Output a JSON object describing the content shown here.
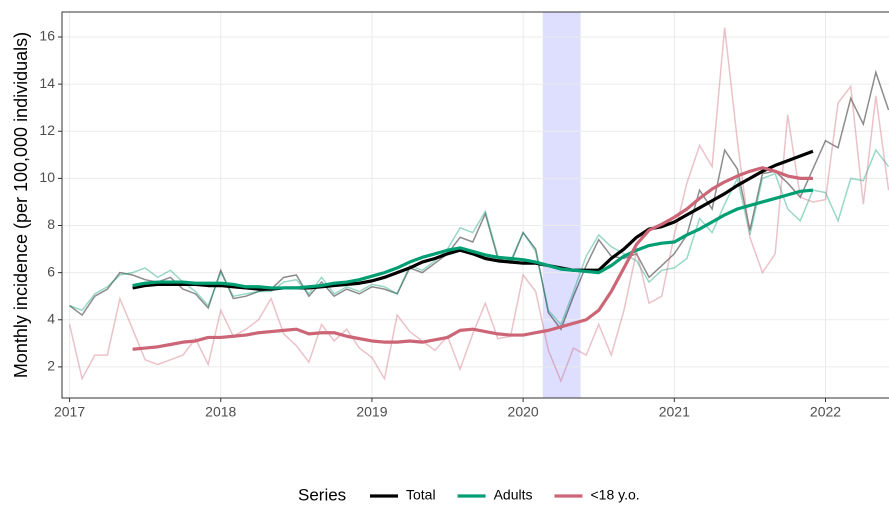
{
  "chart_data": {
    "type": "line",
    "y_label": "Monthly incidence (per 100,000 individuals)",
    "legend_title": "Series",
    "shade": [
      2020.13,
      2020.38
    ],
    "shade_color": "#0000ff",
    "xlim": [
      2016.95,
      2022.42
    ],
    "xticks": [
      2017,
      2018,
      2019,
      2020,
      2021,
      2022
    ],
    "ylim": [
      0.68,
      17.06
    ],
    "yticks": [
      2,
      4,
      6,
      8,
      10,
      12,
      14,
      16
    ],
    "grid": true,
    "x": [
      2017,
      2017.083,
      2017.167,
      2017.25,
      2017.333,
      2017.417,
      2017.5,
      2017.583,
      2017.667,
      2017.75,
      2017.833,
      2017.917,
      2018,
      2018.083,
      2018.167,
      2018.25,
      2018.333,
      2018.417,
      2018.5,
      2018.583,
      2018.667,
      2018.75,
      2018.833,
      2018.917,
      2019,
      2019.083,
      2019.167,
      2019.25,
      2019.333,
      2019.417,
      2019.5,
      2019.583,
      2019.667,
      2019.75,
      2019.833,
      2019.917,
      2020,
      2020.083,
      2020.167,
      2020.25,
      2020.333,
      2020.417,
      2020.5,
      2020.583,
      2020.667,
      2020.75,
      2020.833,
      2020.917,
      2021,
      2021.083,
      2021.167,
      2021.25,
      2021.333,
      2021.417,
      2021.5,
      2021.583,
      2021.667,
      2021.75,
      2021.833,
      2021.917,
      2022,
      2022.083,
      2022.167,
      2022.25,
      2022.333,
      2022.417
    ],
    "trend_x": [
      2017.417,
      2017.5,
      2017.583,
      2017.667,
      2017.75,
      2017.833,
      2017.917,
      2018,
      2018.083,
      2018.167,
      2018.25,
      2018.333,
      2018.417,
      2018.5,
      2018.583,
      2018.667,
      2018.75,
      2018.833,
      2018.917,
      2019,
      2019.083,
      2019.167,
      2019.25,
      2019.333,
      2019.417,
      2019.5,
      2019.583,
      2019.667,
      2019.75,
      2019.833,
      2019.917,
      2020,
      2020.083,
      2020.167,
      2020.25,
      2020.333,
      2020.417,
      2020.5,
      2020.583,
      2020.667,
      2020.75,
      2020.833,
      2020.917,
      2021,
      2021.083,
      2021.167,
      2021.25,
      2021.333,
      2021.417,
      2021.5,
      2021.583,
      2021.667,
      2021.75,
      2021.833,
      2021.917
    ],
    "series": [
      {
        "name": "Total",
        "color": "#000000",
        "values": [
          4.6,
          4.2,
          5.0,
          5.3,
          6.0,
          5.9,
          5.7,
          5.6,
          5.8,
          5.3,
          5.1,
          4.5,
          6.1,
          4.9,
          5.0,
          5.2,
          5.3,
          5.8,
          5.9,
          5.0,
          5.6,
          5.0,
          5.3,
          5.1,
          5.4,
          5.3,
          5.1,
          6.2,
          6.0,
          6.4,
          6.8,
          7.5,
          7.3,
          8.5,
          6.6,
          6.4,
          7.7,
          7.0,
          4.3,
          3.6,
          5.0,
          6.3,
          7.4,
          6.7,
          6.6,
          6.8,
          5.8,
          6.3,
          6.8,
          7.6,
          9.5,
          8.7,
          11.2,
          10.4,
          7.8,
          10.2,
          10.3,
          9.8,
          9.2,
          10.4,
          11.6,
          11.3,
          13.4,
          12.3,
          14.5,
          12.9
        ],
        "trend": [
          5.35,
          5.45,
          5.5,
          5.5,
          5.5,
          5.5,
          5.45,
          5.45,
          5.4,
          5.35,
          5.3,
          5.3,
          5.35,
          5.35,
          5.35,
          5.4,
          5.45,
          5.5,
          5.55,
          5.65,
          5.8,
          6.0,
          6.2,
          6.45,
          6.6,
          6.8,
          6.95,
          6.8,
          6.6,
          6.5,
          6.45,
          6.4,
          6.4,
          6.3,
          6.2,
          6.1,
          6.1,
          6.1,
          6.6,
          7.0,
          7.5,
          7.85,
          7.95,
          8.15,
          8.45,
          8.75,
          9.05,
          9.35,
          9.7,
          10.0,
          10.3,
          10.55,
          10.75,
          10.95,
          11.15
        ]
      },
      {
        "name": "Adults",
        "color": "#009e73",
        "values": [
          4.6,
          4.4,
          5.1,
          5.4,
          5.9,
          6.0,
          6.2,
          5.8,
          6.1,
          5.6,
          5.2,
          4.6,
          6.0,
          5.0,
          5.1,
          5.2,
          5.2,
          5.6,
          5.7,
          5.1,
          5.8,
          5.1,
          5.4,
          5.2,
          5.5,
          5.4,
          5.1,
          6.3,
          6.1,
          6.5,
          7.0,
          7.9,
          7.7,
          8.6,
          6.7,
          6.5,
          7.7,
          6.9,
          4.4,
          3.8,
          5.2,
          6.7,
          7.6,
          7.1,
          6.8,
          6.5,
          5.6,
          6.1,
          6.2,
          6.6,
          8.3,
          7.7,
          8.9,
          10.0,
          7.6,
          10.0,
          10.2,
          8.7,
          8.2,
          9.5,
          9.4,
          8.2,
          10.0,
          9.9,
          11.2,
          10.5
        ],
        "trend": [
          5.45,
          5.55,
          5.6,
          5.6,
          5.6,
          5.55,
          5.55,
          5.55,
          5.5,
          5.4,
          5.4,
          5.35,
          5.35,
          5.35,
          5.4,
          5.45,
          5.55,
          5.6,
          5.7,
          5.85,
          6.0,
          6.2,
          6.45,
          6.65,
          6.8,
          6.95,
          7.05,
          6.9,
          6.75,
          6.65,
          6.6,
          6.55,
          6.45,
          6.3,
          6.15,
          6.1,
          6.05,
          6.0,
          6.3,
          6.7,
          6.95,
          7.15,
          7.25,
          7.3,
          7.6,
          7.85,
          8.15,
          8.45,
          8.7,
          8.85,
          9.0,
          9.15,
          9.3,
          9.45,
          9.5
        ]
      },
      {
        "name": "<18 y.o.",
        "color": "#cc6677",
        "values": [
          3.8,
          1.5,
          2.5,
          2.5,
          4.9,
          3.6,
          2.3,
          2.1,
          2.3,
          2.5,
          3.2,
          2.1,
          4.4,
          3.3,
          3.6,
          4.0,
          4.9,
          3.4,
          2.9,
          2.2,
          3.8,
          3.1,
          3.6,
          2.8,
          2.4,
          1.5,
          4.2,
          3.5,
          3.1,
          2.7,
          3.3,
          1.9,
          3.4,
          4.7,
          3.2,
          3.3,
          5.9,
          5.2,
          2.7,
          1.4,
          2.8,
          2.5,
          3.8,
          2.5,
          4.4,
          6.9,
          4.7,
          5.0,
          7.6,
          9.8,
          11.4,
          10.5,
          16.4,
          11.6,
          7.5,
          6.0,
          6.8,
          12.7,
          9.2,
          9.0,
          9.1,
          13.2,
          13.9,
          8.9,
          13.5,
          9.5
        ],
        "trend": [
          2.75,
          2.8,
          2.85,
          2.95,
          3.05,
          3.1,
          3.25,
          3.25,
          3.3,
          3.35,
          3.45,
          3.5,
          3.55,
          3.6,
          3.4,
          3.45,
          3.45,
          3.3,
          3.2,
          3.1,
          3.05,
          3.05,
          3.1,
          3.05,
          3.15,
          3.25,
          3.55,
          3.6,
          3.5,
          3.4,
          3.35,
          3.35,
          3.45,
          3.55,
          3.7,
          3.85,
          4.0,
          4.4,
          5.2,
          6.2,
          7.2,
          7.8,
          8.05,
          8.35,
          8.7,
          9.15,
          9.55,
          9.85,
          10.1,
          10.3,
          10.45,
          10.3,
          10.1,
          10.0,
          10.0
        ]
      }
    ]
  }
}
